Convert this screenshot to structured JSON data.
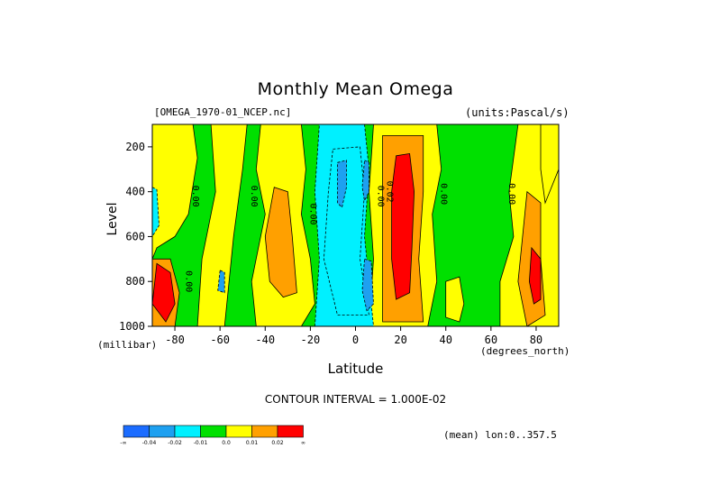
{
  "chart_data": {
    "type": "heatmap",
    "title": "Monthly Mean Omega",
    "dataset": "[OMEGA_1970-01_NCEP.nc]",
    "units": "(units:Pascal/s)",
    "ylabel": "Level",
    "yunit": "(millibar)",
    "xlabel": "Latitude",
    "xunit": "(degrees_north)",
    "contour_interval": "CONTOUR INTERVAL = 1.000E-02",
    "mean_note": "(mean) lon:0..357.5",
    "x_ticks": [
      -80,
      -60,
      -40,
      -20,
      0,
      20,
      40,
      60,
      80
    ],
    "x_tick_labels": [
      "-80",
      "-60",
      "-40",
      "-20",
      "0",
      "20",
      "40",
      "60",
      "80"
    ],
    "xlim": [
      -90,
      90
    ],
    "y_ticks": [
      200,
      400,
      600,
      800,
      1000
    ],
    "y_tick_labels": [
      "200",
      "400",
      "600",
      "800",
      "1000"
    ],
    "ylim": [
      1000,
      100
    ],
    "contour_labels": [
      {
        "text": "0.00",
        "x": -72,
        "y": 420
      },
      {
        "text": "0.00",
        "x": -46,
        "y": 420
      },
      {
        "text": "0.00",
        "x": -20,
        "y": 500
      },
      {
        "text": "0.00",
        "x": 10,
        "y": 420
      },
      {
        "text": "0.02",
        "x": 14,
        "y": 400
      },
      {
        "text": "0.00",
        "x": 38,
        "y": 410
      },
      {
        "text": "0.00",
        "x": 68,
        "y": 410
      },
      {
        "text": "0.00",
        "x": -75,
        "y": 800
      }
    ],
    "regions": [
      {
        "level": "0.01",
        "poly": [
          [
            -90,
            100
          ],
          [
            -72,
            100
          ],
          [
            -70,
            250
          ],
          [
            -74,
            500
          ],
          [
            -80,
            600
          ],
          [
            -88,
            650
          ],
          [
            -90,
            700
          ]
        ]
      },
      {
        "level": "0.01",
        "poly": [
          [
            -64,
            100
          ],
          [
            -48,
            100
          ],
          [
            -50,
            300
          ],
          [
            -54,
            600
          ],
          [
            -56,
            800
          ],
          [
            -58,
            1000
          ],
          [
            -70,
            1000
          ],
          [
            -68,
            700
          ],
          [
            -62,
            400
          ]
        ]
      },
      {
        "level": "0.01",
        "poly": [
          [
            -42,
            100
          ],
          [
            -24,
            100
          ],
          [
            -22,
            300
          ],
          [
            -24,
            500
          ],
          [
            -20,
            700
          ],
          [
            -18,
            900
          ],
          [
            -24,
            1000
          ],
          [
            -44,
            1000
          ],
          [
            -46,
            800
          ],
          [
            -40,
            500
          ],
          [
            -44,
            300
          ]
        ]
      },
      {
        "level": "0.02",
        "poly": [
          [
            -36,
            380
          ],
          [
            -30,
            400
          ],
          [
            -28,
            600
          ],
          [
            -26,
            850
          ],
          [
            -32,
            870
          ],
          [
            -38,
            800
          ],
          [
            -40,
            600
          ]
        ]
      },
      {
        "level": "0.01",
        "poly": [
          [
            8,
            100
          ],
          [
            36,
            100
          ],
          [
            38,
            300
          ],
          [
            34,
            500
          ],
          [
            36,
            800
          ],
          [
            32,
            1000
          ],
          [
            6,
            1000
          ],
          [
            8,
            700
          ],
          [
            6,
            400
          ]
        ]
      },
      {
        "level": "0.02",
        "poly": [
          [
            12,
            150
          ],
          [
            30,
            150
          ],
          [
            30,
            400
          ],
          [
            28,
            700
          ],
          [
            30,
            980
          ],
          [
            12,
            980
          ],
          [
            12,
            600
          ]
        ]
      },
      {
        "level": "0.03",
        "poly": [
          [
            18,
            240
          ],
          [
            24,
            230
          ],
          [
            26,
            400
          ],
          [
            25,
            650
          ],
          [
            24,
            850
          ],
          [
            18,
            880
          ],
          [
            16,
            700
          ],
          [
            16,
            400
          ]
        ]
      },
      {
        "level": "0.01",
        "poly": [
          [
            72,
            100
          ],
          [
            90,
            100
          ],
          [
            90,
            1000
          ],
          [
            64,
            1000
          ],
          [
            64,
            800
          ],
          [
            70,
            600
          ],
          [
            68,
            400
          ]
        ]
      },
      {
        "level": "0.02",
        "poly": [
          [
            76,
            400
          ],
          [
            82,
            450
          ],
          [
            82,
            700
          ],
          [
            84,
            950
          ],
          [
            76,
            1000
          ],
          [
            72,
            800
          ],
          [
            74,
            600
          ]
        ]
      },
      {
        "level": "0.03",
        "poly": [
          [
            78,
            650
          ],
          [
            82,
            700
          ],
          [
            82,
            880
          ],
          [
            79,
            900
          ],
          [
            77,
            800
          ]
        ]
      },
      {
        "level": "0.01",
        "poly": [
          [
            82,
            100
          ],
          [
            90,
            100
          ],
          [
            90,
            300
          ],
          [
            84,
            450
          ],
          [
            82,
            300
          ]
        ]
      },
      {
        "level": "0.01",
        "poly": [
          [
            40,
            800
          ],
          [
            46,
            780
          ],
          [
            48,
            900
          ],
          [
            46,
            980
          ],
          [
            40,
            960
          ]
        ]
      },
      {
        "level": "-0.01",
        "poly": [
          [
            -16,
            100
          ],
          [
            4,
            100
          ],
          [
            6,
            300
          ],
          [
            4,
            600
          ],
          [
            8,
            1000
          ],
          [
            -18,
            1000
          ],
          [
            -16,
            700
          ],
          [
            -18,
            400
          ]
        ]
      },
      {
        "level": "-0.02",
        "poly": [
          [
            -10,
            210
          ],
          [
            2,
            200
          ],
          [
            4,
            400
          ],
          [
            2,
            700
          ],
          [
            6,
            950
          ],
          [
            -8,
            950
          ],
          [
            -14,
            700
          ],
          [
            -12,
            400
          ]
        ]
      },
      {
        "level": "-0.04",
        "poly": [
          [
            -8,
            270
          ],
          [
            -4,
            260
          ],
          [
            -4,
            380
          ],
          [
            -6,
            470
          ],
          [
            -8,
            450
          ]
        ]
      },
      {
        "level": "-0.04",
        "poly": [
          [
            4,
            260
          ],
          [
            6,
            270
          ],
          [
            6,
            400
          ],
          [
            4,
            440
          ],
          [
            3,
            380
          ]
        ]
      },
      {
        "level": "-0.04",
        "poly": [
          [
            4,
            700
          ],
          [
            7,
            710
          ],
          [
            8,
            900
          ],
          [
            5,
            930
          ],
          [
            3,
            840
          ]
        ]
      },
      {
        "level": "0.02",
        "poly": [
          [
            -90,
            700
          ],
          [
            -82,
            700
          ],
          [
            -78,
            850
          ],
          [
            -80,
            1000
          ],
          [
            -90,
            1000
          ]
        ]
      },
      {
        "level": "0.03",
        "poly": [
          [
            -88,
            720
          ],
          [
            -82,
            760
          ],
          [
            -80,
            900
          ],
          [
            -84,
            980
          ],
          [
            -90,
            900
          ]
        ]
      },
      {
        "level": "-0.02",
        "poly": [
          [
            -90,
            380
          ],
          [
            -88,
            390
          ],
          [
            -87,
            550
          ],
          [
            -90,
            600
          ]
        ]
      },
      {
        "level": "-0.04",
        "poly": [
          [
            -60,
            750
          ],
          [
            -58,
            760
          ],
          [
            -58,
            850
          ],
          [
            -61,
            840
          ]
        ]
      }
    ]
  },
  "colorbar": {
    "colors": [
      "#1b6cff",
      "#1ea0f0",
      "#00f0ff",
      "#00e000",
      "#ffff00",
      "#ffa000",
      "#ff0000"
    ],
    "labels": [
      "-∞",
      "-0.04",
      "-0.02",
      "-0.01",
      "0.0",
      "0.01",
      "0.02",
      "∞"
    ]
  },
  "level_colors": {
    "0.00": "#00e000",
    "0.01": "#ffff00",
    "0.02": "#ffa000",
    "0.03": "#ff0000",
    "-0.01": "#00f0ff",
    "-0.02": "#00f0ff",
    "-0.04": "#1ea0f0",
    "background": "#00e000"
  }
}
